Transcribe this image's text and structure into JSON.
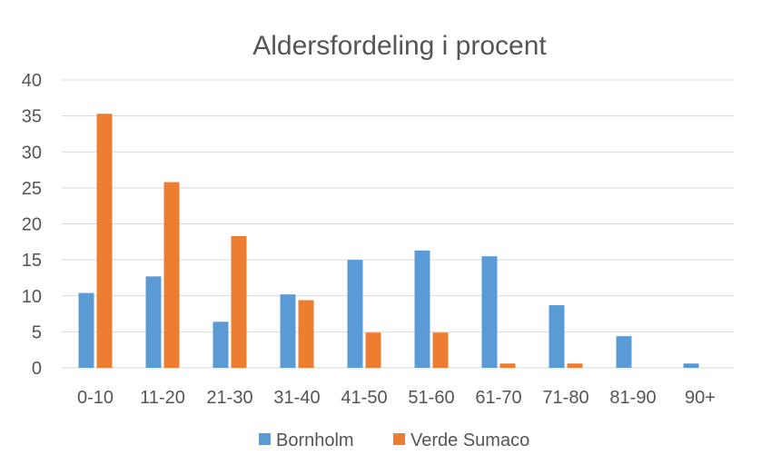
{
  "chart_data": {
    "type": "bar",
    "title": "Aldersfordeling i procent",
    "xlabel": "",
    "ylabel": "",
    "categories": [
      "0-10",
      "11-20",
      "21-30",
      "31-40",
      "41-50",
      "51-60",
      "61-70",
      "71-80",
      "81-90",
      "90+"
    ],
    "series": [
      {
        "name": "Bornholm",
        "color": "#5b9bd5",
        "values": [
          10.4,
          12.7,
          6.4,
          10.2,
          15.0,
          16.3,
          15.5,
          8.7,
          4.4,
          0.6
        ]
      },
      {
        "name": "Verde Sumaco",
        "color": "#ed7d31",
        "values": [
          35.3,
          25.8,
          18.3,
          9.4,
          4.9,
          4.9,
          0.6,
          0.6,
          0,
          0
        ]
      }
    ],
    "ylim": [
      0,
      40
    ],
    "yticks": [
      0,
      5,
      10,
      15,
      20,
      25,
      30,
      35,
      40
    ],
    "grid": true,
    "legend_position": "bottom"
  }
}
